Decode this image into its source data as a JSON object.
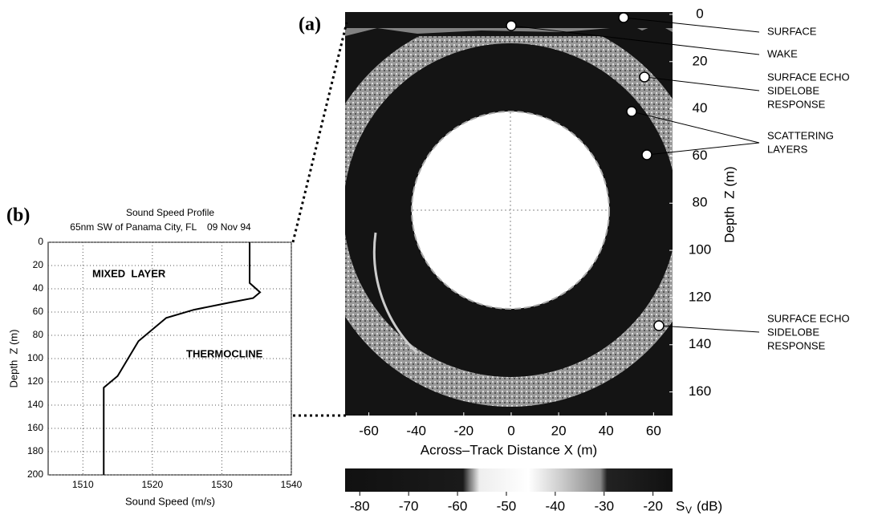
{
  "chart_data": [
    {
      "type": "line",
      "label": "(b)",
      "title": "Sound Speed Profile",
      "subtitle": "65nm SW of Panama City, FL    09 Nov 94",
      "x_label": "Sound Speed (m/s)",
      "y_label": "Depth  Z (m)",
      "xlim": [
        1505,
        1540
      ],
      "xticks": [
        1510,
        1520,
        1530,
        1540
      ],
      "ylim": [
        200,
        0
      ],
      "yticks": [
        0,
        20,
        40,
        60,
        80,
        100,
        120,
        140,
        160,
        180,
        200
      ],
      "grid": true,
      "annotations": [
        {
          "lines": [
            "MIXED  LAYER"
          ]
        },
        {
          "lines": [
            "THERMOCLINE"
          ]
        }
      ],
      "series": [
        {
          "color": "#000000",
          "x": [
            1534,
            1534,
            1535.5,
            1534.5,
            1531,
            1526,
            1522,
            1520,
            1518,
            1517,
            1516,
            1515,
            1514,
            1513,
            1513,
            1513
          ],
          "values": [
            0,
            35,
            43,
            48,
            52,
            58,
            65,
            75,
            85,
            95,
            105,
            115,
            120,
            125,
            135,
            200
          ]
        }
      ]
    },
    {
      "type": "image",
      "label": "(a)",
      "x_label": "Across–Track Distance X (m)",
      "y_label": "Depth  Z (m)",
      "xlim": [
        -70,
        68
      ],
      "xticks": [
        -60,
        -40,
        -20,
        0,
        20,
        40,
        60
      ],
      "ylim": [
        170,
        -1
      ],
      "yticks": [
        0,
        20,
        40,
        60,
        80,
        100,
        120,
        140,
        160
      ],
      "annotations": [
        {
          "lines": [
            "SURFACE"
          ]
        },
        {
          "lines": [
            "WAKE"
          ]
        },
        {
          "lines": [
            "SURFACE ECHO",
            "SIDELOBE",
            "RESPONSE"
          ]
        },
        {
          "lines": [
            "SCATTERING",
            "LAYERS"
          ]
        },
        {
          "lines": [
            "SURFACE ECHO",
            "SIDELOBE",
            "RESPONSE"
          ]
        }
      ],
      "colorbar": {
        "lim": [
          -83,
          -16
        ],
        "ticks": [
          -80,
          -70,
          -60,
          -50,
          -40,
          -30,
          -20
        ],
        "label": [
          "S",
          "V",
          "(dB)"
        ]
      }
    }
  ]
}
